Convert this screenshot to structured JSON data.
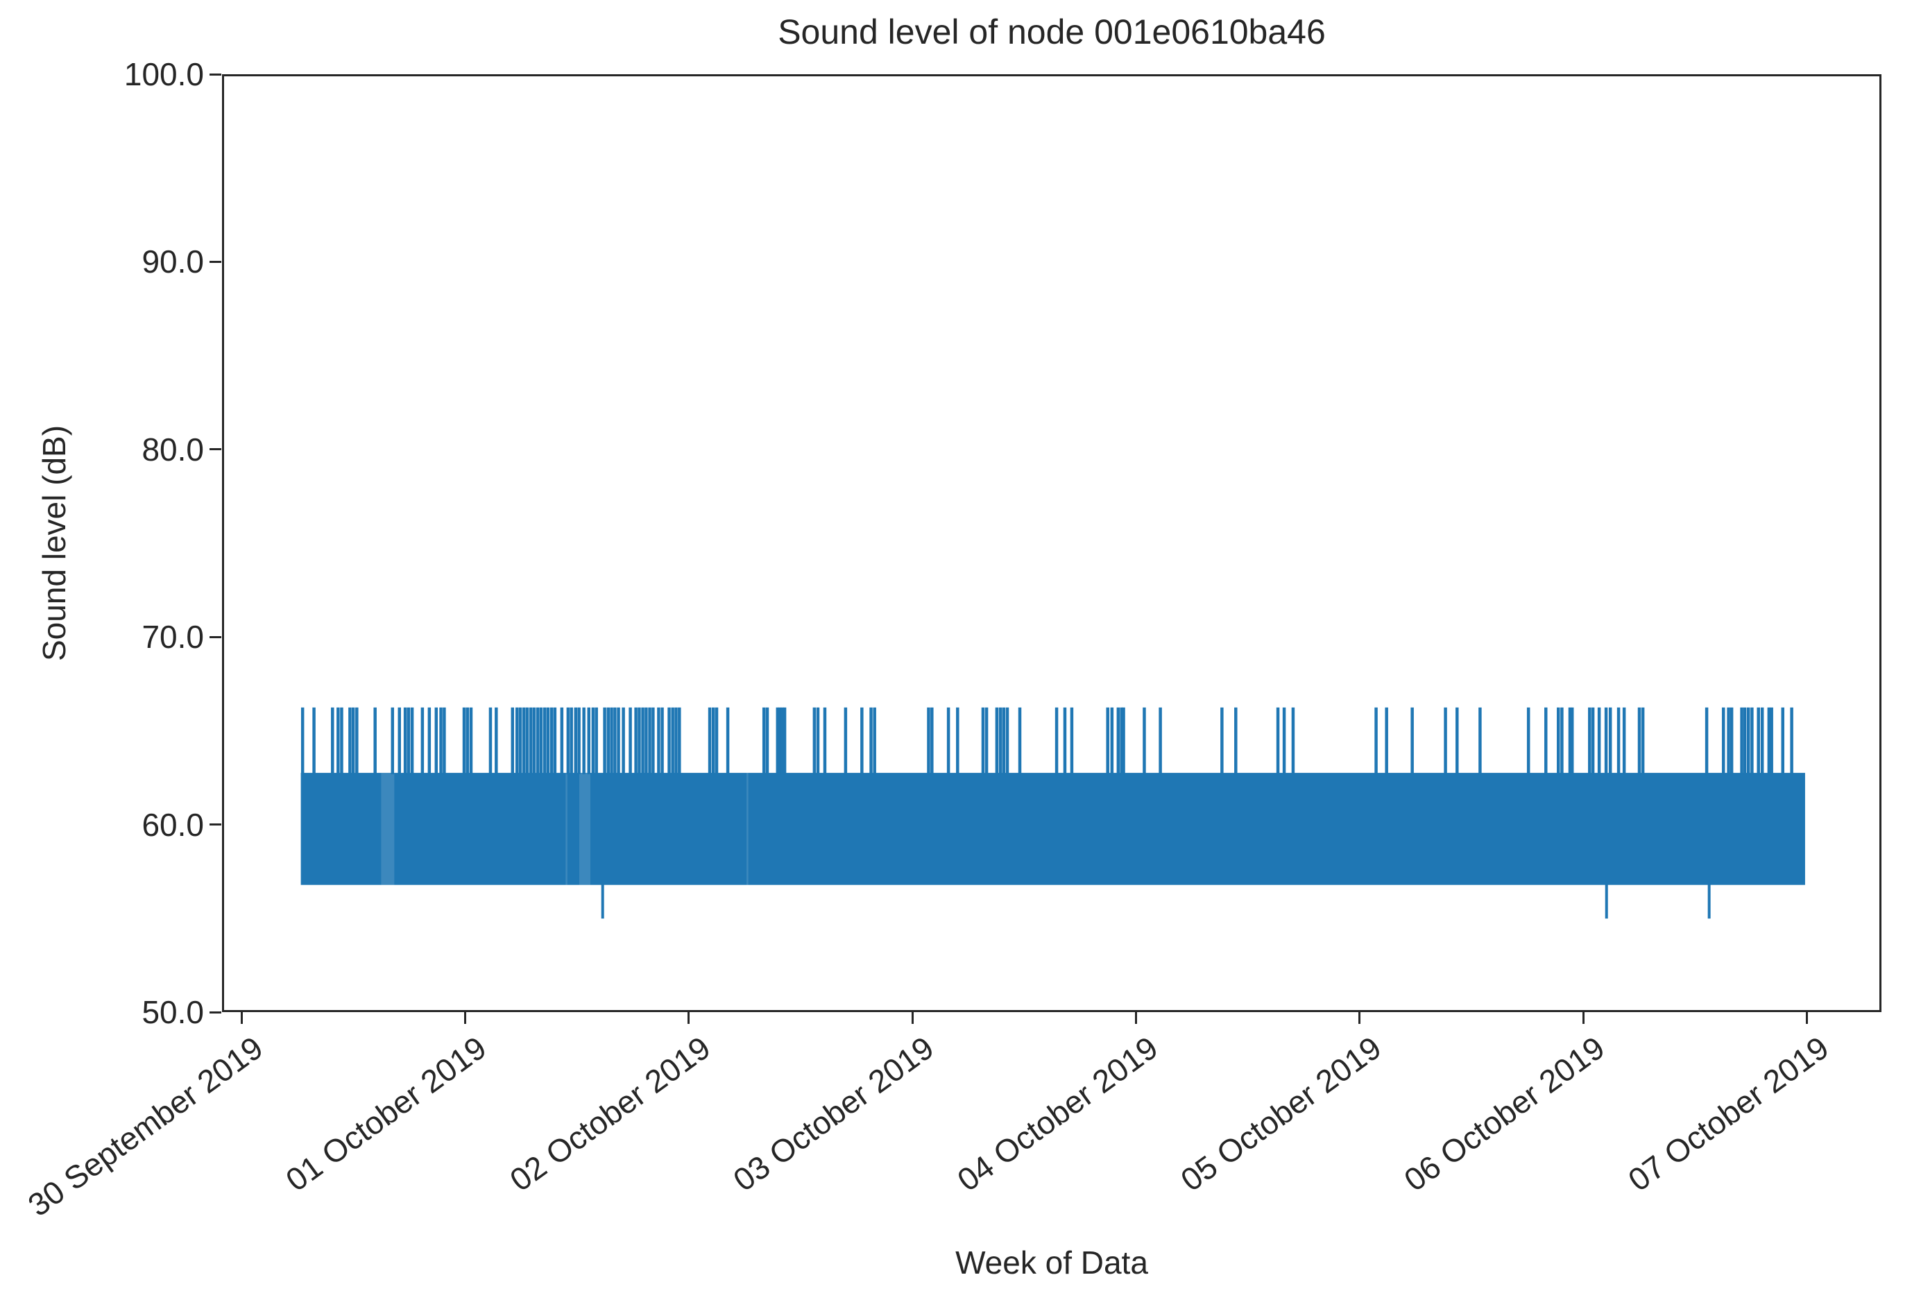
{
  "chart_data": {
    "type": "line",
    "title": "Sound level of node 001e0610ba46",
    "xlabel": "Week of Data",
    "ylabel": "Sound level (dB)",
    "ylim": [
      50,
      100
    ],
    "yticks": [
      {
        "value": 50,
        "label": "50.0"
      },
      {
        "value": 60,
        "label": "60.0"
      },
      {
        "value": 70,
        "label": "70.0"
      },
      {
        "value": 80,
        "label": "80.0"
      },
      {
        "value": 90,
        "label": "90.0"
      },
      {
        "value": 100,
        "label": "100.0"
      }
    ],
    "xticks": [
      {
        "day": 0,
        "label": "30 September 2019"
      },
      {
        "day": 1,
        "label": "01 October 2019"
      },
      {
        "day": 2,
        "label": "02 October 2019"
      },
      {
        "day": 3,
        "label": "03 October 2019"
      },
      {
        "day": 4,
        "label": "04 October 2019"
      },
      {
        "day": 5,
        "label": "05 October 2019"
      },
      {
        "day": 6,
        "label": "06 October 2019"
      },
      {
        "day": 7,
        "label": "07 October 2019"
      },
      {
        "day": 7,
        "label": "07 October 2019"
      }
    ],
    "x_range_days": [
      -0.087,
      7.333
    ],
    "grid": false,
    "legend": null,
    "line_color": "#1f77b4",
    "axis_color": "#262626",
    "band": {
      "comment_visible_reading": "dense oscillating signal forming a solid band for the whole week",
      "start_day": 0.257,
      "end_day": 7.0,
      "low_db": 56.7,
      "high_db": 62.7
    },
    "spikes_up": {
      "peak_db": 66.2,
      "days": [
        0.265,
        0.316,
        0.399,
        0.424,
        0.44,
        0.477,
        0.492,
        0.508,
        0.59,
        0.668,
        0.699,
        0.725,
        0.74,
        0.756,
        0.802,
        0.833,
        0.864,
        0.885,
        0.9,
        0.989,
        1.004,
        1.02,
        1.107,
        1.133,
        1.206,
        1.226,
        1.241,
        1.257,
        1.272,
        1.288,
        1.303,
        1.319,
        1.334,
        1.35,
        1.365,
        1.381,
        1.396,
        1.427,
        1.455,
        1.47,
        1.489,
        1.504,
        1.526,
        1.548,
        1.567,
        1.582,
        1.619,
        1.635,
        1.65,
        1.665,
        1.681,
        1.703,
        1.734,
        1.759,
        1.774,
        1.79,
        1.805,
        1.821,
        1.836,
        1.861,
        1.877,
        1.908,
        1.924,
        1.939,
        1.954,
        2.09,
        2.106,
        2.121,
        2.171,
        2.333,
        2.348,
        2.394,
        2.404,
        2.416,
        2.426,
        2.559,
        2.575,
        2.606,
        2.699,
        2.772,
        2.813,
        2.829,
        3.071,
        3.086,
        3.16,
        3.201,
        3.315,
        3.331,
        3.377,
        3.393,
        3.408,
        3.424,
        3.48,
        3.645,
        3.682,
        3.713,
        3.874,
        3.893,
        3.921,
        3.936,
        3.945,
        4.038,
        4.11,
        4.386,
        4.448,
        4.637,
        4.665,
        4.705,
        5.077,
        5.124,
        5.239,
        5.388,
        5.44,
        5.543,
        5.76,
        5.838,
        5.894,
        5.91,
        5.946,
        5.956,
        6.034,
        6.049,
        6.077,
        6.108,
        6.127,
        6.164,
        6.189,
        6.257,
        6.273,
        6.559,
        6.634,
        6.657,
        6.671,
        6.716,
        6.73,
        6.746,
        6.762,
        6.791,
        6.808,
        6.838,
        6.85,
        6.9,
        6.94
      ]
    },
    "spikes_down": {
      "trough_db": 54.9,
      "days": [
        1.61,
        6.11,
        6.57
      ]
    },
    "light_streaks": [
      {
        "from_day": 0.617,
        "to_day": 0.676
      },
      {
        "from_day": 1.444,
        "to_day": 1.452
      },
      {
        "from_day": 1.505,
        "to_day": 1.555
      },
      {
        "from_day": 2.255,
        "to_day": 2.263
      }
    ]
  }
}
